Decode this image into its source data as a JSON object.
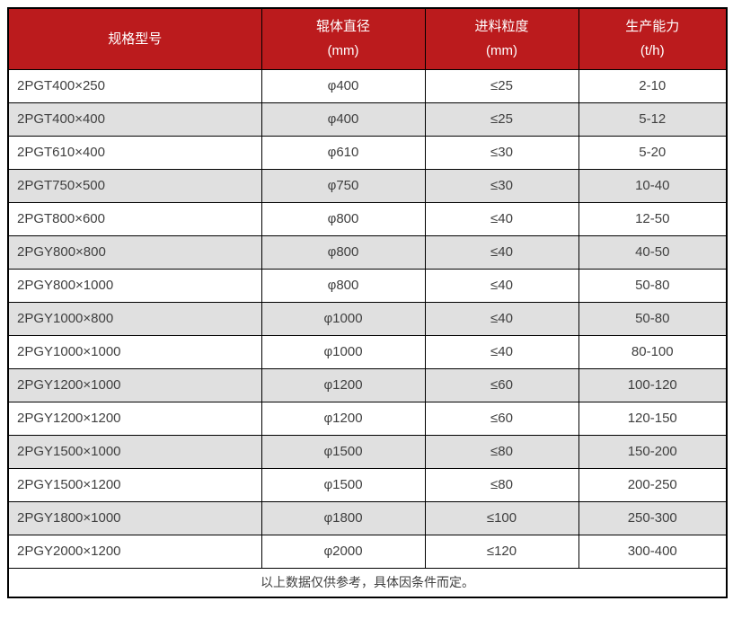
{
  "colors": {
    "header_bg": "#bb1b1d",
    "header_text": "#ffffff",
    "row_alt_bg": "#e0e0e0",
    "cell_text": "#3f3f3f",
    "border": "#000000"
  },
  "table": {
    "columns": [
      {
        "title": "规格型号",
        "unit": ""
      },
      {
        "title": "辊体直径",
        "unit": "(mm)"
      },
      {
        "title": "进料粒度",
        "unit": "(mm)"
      },
      {
        "title": "生产能力",
        "unit": "(t/h)"
      }
    ],
    "rows": [
      [
        "2PGT400×250",
        "φ400",
        "≤25",
        "2-10"
      ],
      [
        "2PGT400×400",
        "φ400",
        "≤25",
        "5-12"
      ],
      [
        "2PGT610×400",
        "φ610",
        "≤30",
        "5-20"
      ],
      [
        "2PGT750×500",
        "φ750",
        "≤30",
        "10-40"
      ],
      [
        "2PGT800×600",
        "φ800",
        "≤40",
        "12-50"
      ],
      [
        "2PGY800×800",
        "φ800",
        "≤40",
        "40-50"
      ],
      [
        "2PGY800×1000",
        "φ800",
        "≤40",
        "50-80"
      ],
      [
        "2PGY1000×800",
        "φ1000",
        "≤40",
        "50-80"
      ],
      [
        "2PGY1000×1000",
        "φ1000",
        "≤40",
        "80-100"
      ],
      [
        "2PGY1200×1000",
        "φ1200",
        "≤60",
        "100-120"
      ],
      [
        "2PGY1200×1200",
        "φ1200",
        "≤60",
        "120-150"
      ],
      [
        "2PGY1500×1000",
        "φ1500",
        "≤80",
        "150-200"
      ],
      [
        "2PGY1500×1200",
        "φ1500",
        "≤80",
        "200-250"
      ],
      [
        "2PGY1800×1000",
        "φ1800",
        "≤100",
        "250-300"
      ],
      [
        "2PGY2000×1200",
        "φ2000",
        "≤120",
        "300-400"
      ]
    ],
    "footnote": "以上数据仅供参考，具体因条件而定。"
  }
}
